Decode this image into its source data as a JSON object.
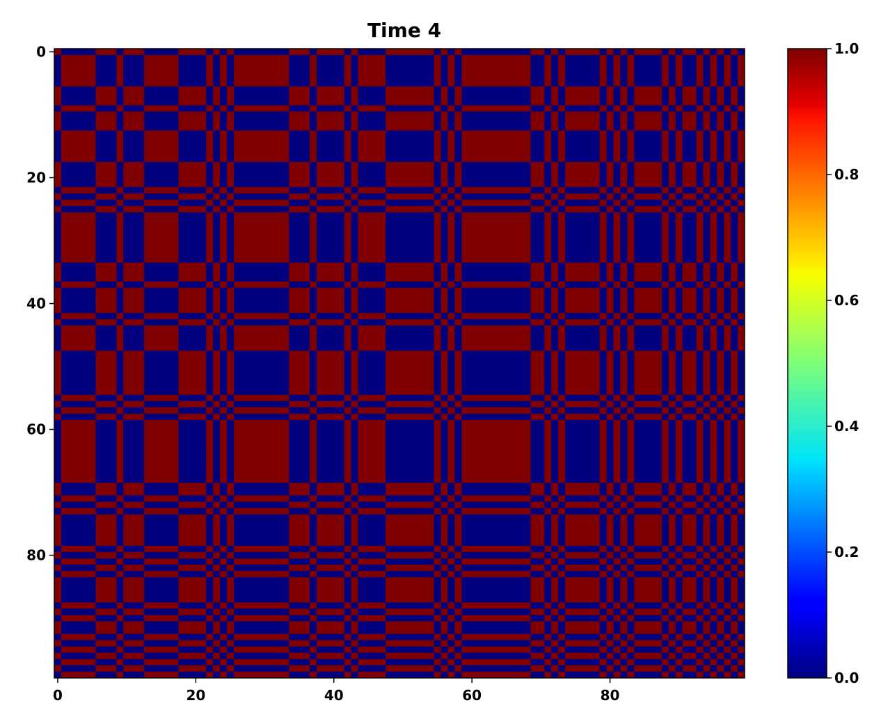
{
  "chart_data": {
    "type": "heatmap",
    "title": "Time 4",
    "xlabel": "",
    "ylabel": "",
    "n_rows": 100,
    "n_cols": 100,
    "x_ticks": [
      0,
      20,
      40,
      60,
      80
    ],
    "y_ticks": [
      0,
      20,
      40,
      60,
      80
    ],
    "x_tick_labels": [
      "0",
      "20",
      "40",
      "60",
      "80"
    ],
    "y_tick_labels": [
      "0",
      "20",
      "40",
      "60",
      "80"
    ],
    "colorbar": {
      "range": [
        0.0,
        1.0
      ],
      "ticks": [
        0.0,
        0.2,
        0.4,
        0.6,
        0.8,
        1.0
      ],
      "tick_labels": [
        "0.0",
        "0.2",
        "0.4",
        "0.6",
        "0.8",
        "1.0"
      ],
      "colormap": "jet"
    },
    "value_model": "cell(i,j) = 1.0 if state[i] == state[j] else 0.0 (two-state synchronization matrix)",
    "state": [
      1,
      0,
      0,
      0,
      0,
      0,
      1,
      1,
      1,
      0,
      1,
      1,
      1,
      0,
      0,
      0,
      0,
      0,
      1,
      1,
      1,
      1,
      0,
      1,
      0,
      1,
      0,
      0,
      0,
      0,
      0,
      0,
      0,
      0,
      1,
      1,
      1,
      0,
      1,
      1,
      1,
      1,
      0,
      1,
      0,
      0,
      0,
      0,
      1,
      1,
      1,
      1,
      1,
      1,
      1,
      0,
      1,
      0,
      1,
      0,
      0,
      0,
      0,
      0,
      0,
      0,
      0,
      0,
      0,
      1,
      1,
      0,
      1,
      0,
      1,
      1,
      1,
      1,
      1,
      0,
      1,
      0,
      1,
      0,
      1,
      1,
      1,
      1,
      0,
      1,
      0,
      1,
      1,
      0,
      1,
      0,
      1,
      0,
      1,
      0
    ],
    "grid": false,
    "colors": {
      "high": "#800000",
      "low": "#00007f"
    }
  }
}
